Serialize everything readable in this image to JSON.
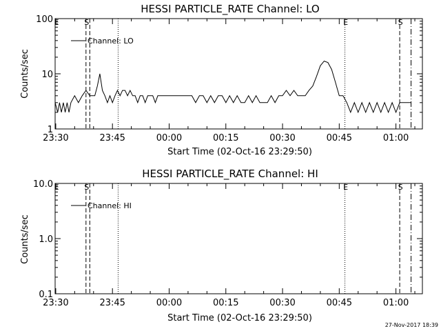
{
  "chart_data": [
    {
      "type": "line",
      "title": "HESSI PARTICLE_RATE Channel: LO",
      "xlabel": "Start Time (02-Oct-16 23:29:50)",
      "ylabel": "Counts/sec",
      "yscale": "log",
      "ylim": [
        1,
        100
      ],
      "yticks": [
        "1",
        "10",
        "100"
      ],
      "xlim": [
        "23:29:50",
        "01:07:00"
      ],
      "xticks": [
        "23:30",
        "23:45",
        "00:00",
        "00:15",
        "00:30",
        "00:45",
        "01:00"
      ],
      "legend": {
        "position": "top-left",
        "entries": [
          "Channel: LO"
        ]
      },
      "series": [
        {
          "name": "Channel: LO",
          "x": [
            "23:29:50",
            "23:30:30",
            "23:31:00",
            "23:31:30",
            "23:32:00",
            "23:32:30",
            "23:33:00",
            "23:33:30",
            "23:34:00",
            "23:35:00",
            "23:36:00",
            "23:37:00",
            "23:38:00",
            "23:39:00",
            "23:39:40",
            "23:40:20",
            "23:41:00",
            "23:41:40",
            "23:42:20",
            "23:43:00",
            "23:43:40",
            "23:44:20",
            "23:45:00",
            "23:45:40",
            "23:46:20",
            "23:47:00",
            "23:47:40",
            "23:48:20",
            "23:49:00",
            "23:49:40",
            "23:50:20",
            "23:51:00",
            "23:51:40",
            "23:52:20",
            "23:53:00",
            "23:53:40",
            "23:54:20",
            "23:55:00",
            "23:55:40",
            "23:56:20",
            "23:57:00",
            "23:57:40",
            "23:58:20",
            "23:59:00",
            "23:59:40",
            "00:00:20",
            "00:01:00",
            "00:02:00",
            "00:03:00",
            "00:04:00",
            "00:05:00",
            "00:06:00",
            "00:07:00",
            "00:08:00",
            "00:09:00",
            "00:10:00",
            "00:11:00",
            "00:12:00",
            "00:13:00",
            "00:14:00",
            "00:15:00",
            "00:16:00",
            "00:17:00",
            "00:18:00",
            "00:19:00",
            "00:20:00",
            "00:21:00",
            "00:22:00",
            "00:23:00",
            "00:24:00",
            "00:25:00",
            "00:26:00",
            "00:27:00",
            "00:28:00",
            "00:29:00",
            "00:30:00",
            "00:31:00",
            "00:32:00",
            "00:33:00",
            "00:34:00",
            "00:35:00",
            "00:36:00",
            "00:37:00",
            "00:38:00",
            "00:39:00",
            "00:40:00",
            "00:41:00",
            "00:42:00",
            "00:43:00",
            "00:44:00",
            "00:45:00",
            "00:46:00",
            "00:47:00",
            "00:48:00",
            "00:49:00",
            "00:50:00",
            "00:51:00",
            "00:52:00",
            "00:53:00",
            "00:54:00",
            "00:55:00",
            "00:56:00",
            "00:57:00",
            "00:58:00",
            "00:59:00",
            "01:00:00",
            "01:01:00",
            "01:02:00",
            "01:03:00",
            "01:04:00"
          ],
          "y": [
            3,
            2,
            3,
            2,
            3,
            2,
            3,
            2,
            3,
            4,
            3,
            4,
            5,
            4,
            4,
            4,
            6,
            10,
            5,
            4,
            3,
            4,
            3,
            4,
            5,
            4,
            5,
            5,
            4,
            5,
            4,
            4,
            3,
            4,
            4,
            3,
            4,
            4,
            4,
            3,
            4,
            4,
            4,
            4,
            4,
            4,
            4,
            4,
            4,
            4,
            4,
            4,
            3,
            4,
            4,
            3,
            4,
            3,
            4,
            4,
            3,
            4,
            3,
            4,
            3,
            3,
            4,
            3,
            4,
            3,
            3,
            3,
            4,
            3,
            4,
            4,
            5,
            4,
            5,
            4,
            4,
            4,
            5,
            6,
            9,
            14,
            17,
            16,
            12,
            7,
            4,
            4,
            3,
            2,
            3,
            2,
            3,
            2,
            3,
            2,
            3,
            2,
            3,
            2,
            3,
            2,
            3,
            3,
            3,
            3
          ],
          "color": "#000000"
        }
      ],
      "event_markers": [
        {
          "time": "23:30:00",
          "style": "none",
          "label": "E"
        },
        {
          "time": "23:38:00",
          "style": "dashed",
          "label": "S"
        },
        {
          "time": "23:39:00",
          "style": "dashed",
          "label": ""
        },
        {
          "time": "23:46:30",
          "style": "dotted",
          "label": ""
        },
        {
          "time": "00:46:30",
          "style": "dotted",
          "label": "E"
        },
        {
          "time": "01:01:00",
          "style": "dashed",
          "label": "S"
        },
        {
          "time": "01:04:00",
          "style": "dashdot",
          "label": ""
        }
      ]
    },
    {
      "type": "line",
      "title": "HESSI PARTICLE_RATE Channel: HI",
      "xlabel": "Start Time (02-Oct-16 23:29:50)",
      "ylabel": "Counts/sec",
      "yscale": "log",
      "ylim": [
        0.1,
        10
      ],
      "yticks": [
        "0.1",
        "1.0",
        "10.0"
      ],
      "xlim": [
        "23:29:50",
        "01:07:00"
      ],
      "xticks": [
        "23:30",
        "23:45",
        "00:00",
        "00:15",
        "00:30",
        "00:45",
        "01:00"
      ],
      "legend": {
        "position": "top-left",
        "entries": [
          "Channel: HI"
        ]
      },
      "series": [
        {
          "name": "Channel: HI",
          "x": [],
          "y": [],
          "color": "#000000"
        }
      ],
      "event_markers": [
        {
          "time": "23:30:00",
          "style": "none",
          "label": "E"
        },
        {
          "time": "23:38:00",
          "style": "dashed",
          "label": "S"
        },
        {
          "time": "23:39:00",
          "style": "dashed",
          "label": ""
        },
        {
          "time": "23:46:30",
          "style": "dotted",
          "label": ""
        },
        {
          "time": "00:46:30",
          "style": "dotted",
          "label": "E"
        },
        {
          "time": "01:01:00",
          "style": "dashed",
          "label": "S"
        },
        {
          "time": "01:04:00",
          "style": "dashdot",
          "label": ""
        }
      ]
    }
  ],
  "footer": {
    "timestamp": "27-Nov-2017 18:39"
  }
}
